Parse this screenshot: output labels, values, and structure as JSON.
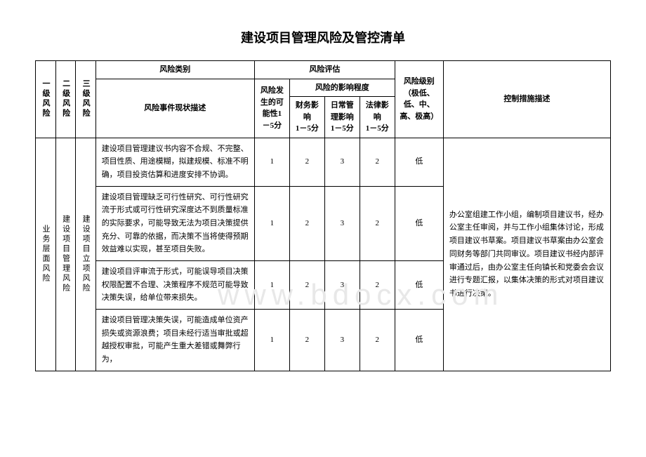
{
  "title": "建设项目管理风险及管控清单",
  "watermark": "www.bdocx.com",
  "headers": {
    "l1": "一级风险",
    "l2": "二级风险",
    "l3": "三级风险",
    "category": "风险类别",
    "assessment": "风险评估",
    "event_desc": "风险事件现状描述",
    "probability": "风险发生的可能性1－5分",
    "impact": "风险的影响程度",
    "financial": "财务影响\n1－5分",
    "daily": "日常管理影响\n1－5分",
    "legal": "法律影响\n1－5分",
    "level": "风险级别\n（极低、低、中、高、极高）",
    "control": "控制措施描述"
  },
  "l1_label": "业务层面风险",
  "l2_label": "建设项目管理风险",
  "l3_label": "建设项目立项风险",
  "rows": [
    {
      "desc": "建设项目管理建议书内容不合规、不完整、项目性质、用途模糊，拟建规模、标准不明确，项目投资估算和进度安排不协调。",
      "prob": "1",
      "fin": "2",
      "daily": "3",
      "legal": "2",
      "level": "低"
    },
    {
      "desc": "建设项目管理缺乏可行性研究、可行性研究流于形式或可行性研究深度达不到质量标准的实际要求，可能导致无法为项目决策提供充分、可靠的依据，而决策不当将使得预期效益难以实现，甚至项目失败。",
      "prob": "1",
      "fin": "2",
      "daily": "3",
      "legal": "2",
      "level": "低"
    },
    {
      "desc": "建设项目评审流于形式，可能误导项目决策权限配置不合理、决策程序不规范可能导致决策失误，给单位带来损失。",
      "prob": "1",
      "fin": "2",
      "daily": "3",
      "legal": "2",
      "level": "低"
    },
    {
      "desc": "建设项目管理决策失误，可能造成单位资产损失或资源浪费；项目未经行适当审批或超越授权审批，可能产生重大差错或舞弊行为，",
      "prob": "1",
      "fin": "2",
      "daily": "3",
      "legal": "2",
      "level": "低"
    }
  ],
  "control_text": "办公室组建工作小组，编制项目建议书，经办公室主任审阅，并与工作小组集体讨论，形成项目建议书草案。项目建议书草案由办公室会同财务等部门共同审议。项目建议书经内部评审通过后，由办公室主任向镇长和党委会会议进行专题汇报，以集体决策的形式对项目建议书进行决策。"
}
